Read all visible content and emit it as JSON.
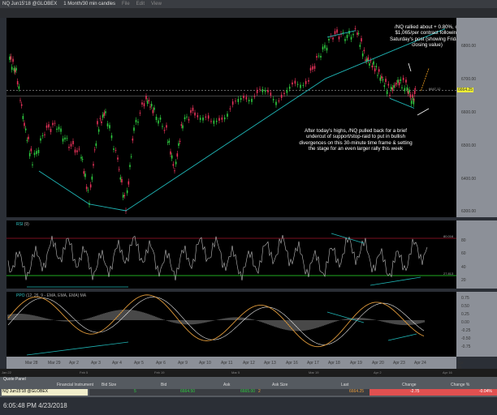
{
  "window": {
    "symbol": "NQ Jun15'18 @GLOBEX",
    "timeframe": "1 Month/30 min candles",
    "menus": [
      "File",
      "Edit",
      "View"
    ]
  },
  "price_axis": {
    "ticks": [
      "6800.00",
      "6700.00",
      "6600.00",
      "6500.00",
      "6400.00",
      "6300.00"
    ],
    "last": "6664.25",
    "ref_level": "6647.12"
  },
  "annotations": {
    "top": "/NQ rallied about + 0.80%, or $1,065/per contract following Saturday's post (showing Friday's closing value)",
    "bottom": "After today's highs, /NQ pulled back for a brief undercut of support/stop-raid to put in bullish divergences on this 30-minute time frame & setting the stage for an even larger rally this week"
  },
  "rsi": {
    "label": "RSI",
    "params": "(9)",
    "ticks": [
      "80",
      "60",
      "40",
      "20"
    ],
    "upper": "80.016",
    "lower": "27.813"
  },
  "ppo": {
    "label": "PPO",
    "params": "(12, 26, 9 - EMA, EMA, EMA)",
    "ma": "MA",
    "ticks": [
      "0.75",
      "0.50",
      "0.25",
      "0.00",
      "-0.25",
      "-0.50",
      "-0.75"
    ]
  },
  "dates": [
    "Mar 28",
    "Mar 29",
    "Apr 2",
    "Apr 3",
    "Apr 4",
    "Apr 5",
    "Apr 6",
    "Apr 9",
    "Apr 10",
    "Apr 11",
    "Apr 12",
    "Apr 13",
    "Apr 16",
    "Apr 17",
    "Apr 18",
    "Apr 19",
    "Apr 20",
    "Apr 23",
    "Apr 24",
    "Apr 26"
  ],
  "scroller": [
    "Jan 22",
    "Feb 5",
    "Feb 19",
    "Mar 5",
    "Mar 19",
    "Apr 2",
    "Apr 16"
  ],
  "quote_panel": {
    "title": "Quote Panel",
    "headers": [
      "Financial Instrument",
      "Bid Size",
      "Bid",
      "Ask",
      "Ask Size",
      "Last",
      "Change",
      "Change %"
    ],
    "row": {
      "instrument": "NQ Jun15'18 @GLOBEX",
      "bid_size": "5",
      "bid": "6664.50",
      "ask": "6665.00",
      "ask_size": "2",
      "last": "6664.25",
      "change": "-2.75",
      "change_pct": "-0.04%"
    }
  },
  "status": {
    "datetime": "6:05:48 PM 4/23/2018"
  },
  "colors": {
    "up": "#2ecc40",
    "down": "#e8325a",
    "trend": "#1fb5b5",
    "ppo": "#e09a3a",
    "down_cell": "#e05050"
  }
}
